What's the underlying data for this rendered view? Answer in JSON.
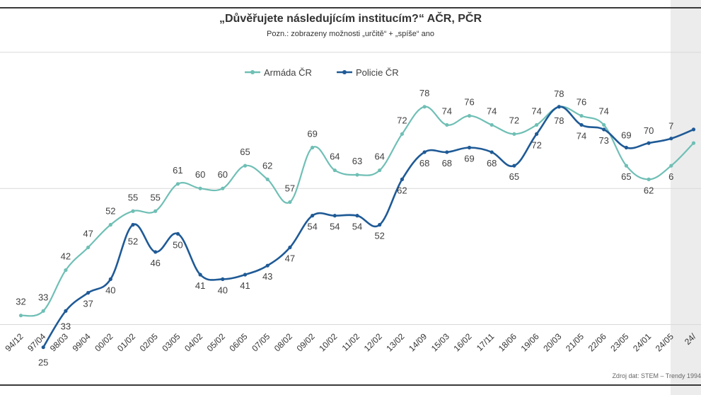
{
  "title": "„Důvěřujete následujícím institucím?“ AČR, PČR",
  "subtitle": "Pozn.: zobrazeny možnosti „určitě“ + „spíše“ ano",
  "source": "Zdroj dat: STEM – Trendy 1994",
  "chart_data": {
    "type": "line",
    "categories": [
      "94/12",
      "97/04",
      "98/03",
      "99/04",
      "00/02",
      "01/02",
      "02/05",
      "03/05",
      "04/02",
      "05/02",
      "06/05",
      "07/05",
      "08/02",
      "09/02",
      "10/02",
      "11/02",
      "12/02",
      "13/02",
      "14/09",
      "15/03",
      "16/02",
      "17/11",
      "18/06",
      "19/06",
      "20/03",
      "21/05",
      "22/06",
      "23/05",
      "24/01",
      "24/05",
      "24/"
    ],
    "series": [
      {
        "name": "Armáda ČR",
        "color": "#6fbfb5",
        "values": [
          32,
          33,
          42,
          47,
          52,
          55,
          55,
          61,
          60,
          60,
          65,
          62,
          57,
          69,
          64,
          63,
          64,
          72,
          78,
          74,
          76,
          74,
          72,
          74,
          78,
          76,
          74,
          65,
          62,
          65,
          70
        ]
      },
      {
        "name": "Policie ČR",
        "color": "#1f5a96",
        "values": [
          null,
          25,
          33,
          37,
          40,
          52,
          46,
          50,
          41,
          40,
          41,
          43,
          47,
          54,
          54,
          54,
          52,
          62,
          68,
          68,
          69,
          68,
          65,
          72,
          78,
          74,
          73,
          69,
          70,
          71,
          73
        ]
      }
    ],
    "visible_value_labels": {
      "Armáda ČR": [
        "32",
        "33",
        "42",
        "47",
        "52",
        "55",
        "55",
        "61",
        "60",
        "60",
        "65",
        "62",
        "57",
        "69",
        "64",
        "63",
        "64",
        "72",
        "78",
        "74",
        "76",
        "74",
        "72",
        "74",
        "78",
        "76",
        "74",
        "65",
        "62",
        "6"
      ],
      "Policie ČR": [
        "25",
        "33",
        "37",
        "40",
        "52",
        "46",
        "50",
        "41",
        "40",
        "41",
        "43",
        "47",
        "54",
        "54",
        "54",
        "52",
        "62",
        "68",
        "68",
        "69",
        "68",
        "65",
        "72",
        "78",
        "74",
        "73",
        "69",
        "70",
        "7"
      ]
    },
    "visible_tick_labels": [
      "94/12",
      "97/04",
      "98/03",
      "99/04",
      "00/02",
      "01/02",
      "02/05",
      "03/05",
      "04/02",
      "05/02",
      "06/05",
      "07/05",
      "08/02",
      "09/02",
      "10/02",
      "11/02",
      "12/02",
      "13/02",
      "14/09",
      "15/03",
      "16/02",
      "17/11",
      "18/06",
      "19/06",
      "20/03",
      "21/05",
      "22/06",
      "23/05",
      "24/01",
      "24/05",
      "24/"
    ],
    "ylim": [
      0,
      100
    ],
    "grid": true,
    "legend_position": "top-left",
    "xlabel": "",
    "ylabel": ""
  }
}
